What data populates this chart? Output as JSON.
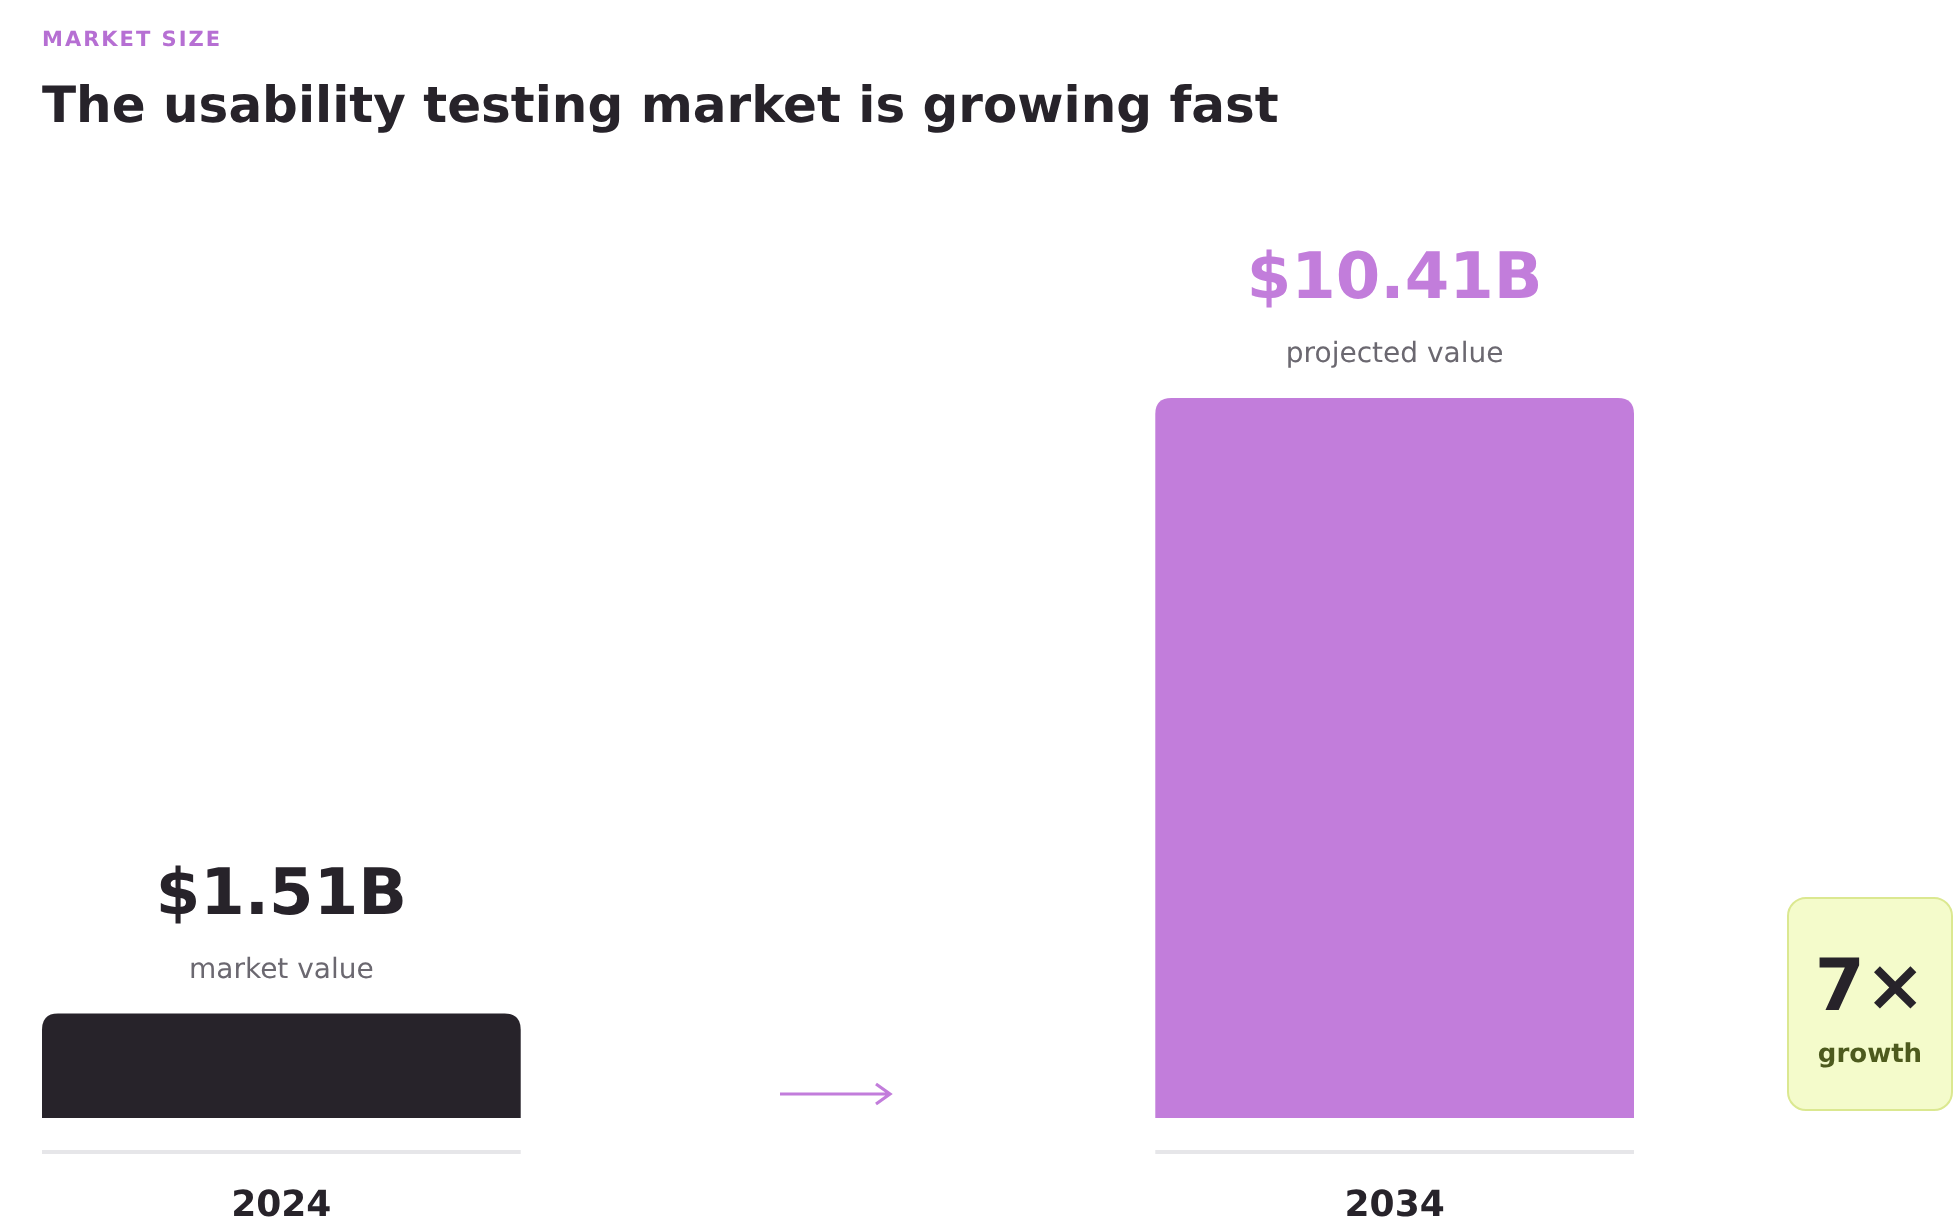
{
  "chart_data": {
    "type": "bar",
    "subtitle": "MARKET SIZE",
    "title": "The usability testing market is growing fast",
    "categories": [
      "2024",
      "2034"
    ],
    "values": [
      1.51,
      10.41
    ],
    "colors": [
      "#27232a",
      "#c27ddb"
    ],
    "value_labels": [
      "$1.51B",
      "$10.41B"
    ],
    "annotations": [
      {
        "text": "market value",
        "x": "2024",
        "y": 1.51
      },
      {
        "text": "projected value",
        "x": "2034",
        "y": 10.41
      },
      "7×",
      "growth"
    ]
  }
}
